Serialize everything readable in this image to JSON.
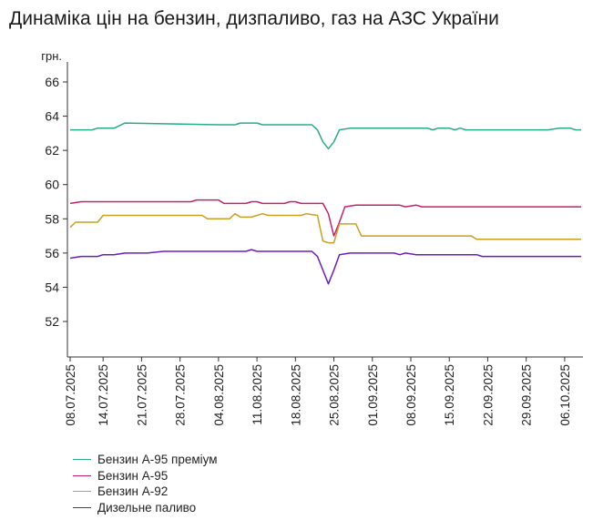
{
  "title": "Динаміка цін на бензин, дизпаливо, газ на АЗС України",
  "chart_data": {
    "type": "line",
    "ylabel": "грн.",
    "ylim": [
      50,
      66
    ],
    "yticks": [
      52,
      54,
      56,
      58,
      60,
      62,
      64,
      66
    ],
    "x_start": "2025-07-08",
    "x_end": "2025-10-09",
    "xticks": [
      "08.07.2025",
      "14.07.2025",
      "21.07.2025",
      "28.07.2025",
      "04.08.2025",
      "11.08.2025",
      "18.08.2025",
      "25.08.2025",
      "01.09.2025",
      "08.09.2025",
      "15.09.2025",
      "22.09.2025",
      "29.09.2025",
      "06.10.2025"
    ],
    "legend_position": "bottom-left",
    "grid": false,
    "series": [
      {
        "name": "Бензин А-95 преміум",
        "color": "#2aaa8a",
        "points": [
          [
            "2025-07-08",
            63.2
          ],
          [
            "2025-07-12",
            63.2
          ],
          [
            "2025-07-13",
            63.3
          ],
          [
            "2025-07-16",
            63.3
          ],
          [
            "2025-07-18",
            63.6
          ],
          [
            "2025-08-04",
            63.5
          ],
          [
            "2025-08-07",
            63.5
          ],
          [
            "2025-08-08",
            63.6
          ],
          [
            "2025-08-11",
            63.6
          ],
          [
            "2025-08-12",
            63.5
          ],
          [
            "2025-08-21",
            63.5
          ],
          [
            "2025-08-22",
            63.2
          ],
          [
            "2025-08-23",
            62.5
          ],
          [
            "2025-08-24",
            62.1
          ],
          [
            "2025-08-25",
            62.5
          ],
          [
            "2025-08-26",
            63.2
          ],
          [
            "2025-08-28",
            63.3
          ],
          [
            "2025-09-11",
            63.3
          ],
          [
            "2025-09-12",
            63.2
          ],
          [
            "2025-09-13",
            63.3
          ],
          [
            "2025-09-15",
            63.3
          ],
          [
            "2025-09-16",
            63.2
          ],
          [
            "2025-09-17",
            63.3
          ],
          [
            "2025-09-18",
            63.2
          ],
          [
            "2025-09-30",
            63.2
          ],
          [
            "2025-10-01",
            63.2
          ],
          [
            "2025-10-03",
            63.2
          ],
          [
            "2025-10-05",
            63.3
          ],
          [
            "2025-10-07",
            63.3
          ],
          [
            "2025-10-08",
            63.2
          ],
          [
            "2025-10-09",
            63.2
          ]
        ]
      },
      {
        "name": "Бензин А-95",
        "color": "#c0226e",
        "points": [
          [
            "2025-07-08",
            58.9
          ],
          [
            "2025-07-10",
            59.0
          ],
          [
            "2025-07-30",
            59.0
          ],
          [
            "2025-07-31",
            59.1
          ],
          [
            "2025-08-04",
            59.1
          ],
          [
            "2025-08-05",
            58.9
          ],
          [
            "2025-08-09",
            58.9
          ],
          [
            "2025-08-10",
            59.0
          ],
          [
            "2025-08-11",
            59.0
          ],
          [
            "2025-08-12",
            58.9
          ],
          [
            "2025-08-16",
            58.9
          ],
          [
            "2025-08-17",
            59.0
          ],
          [
            "2025-08-18",
            59.0
          ],
          [
            "2025-08-19",
            58.9
          ],
          [
            "2025-08-23",
            58.9
          ],
          [
            "2025-08-24",
            58.3
          ],
          [
            "2025-08-25",
            57.0
          ],
          [
            "2025-08-26",
            57.8
          ],
          [
            "2025-08-27",
            58.7
          ],
          [
            "2025-08-29",
            58.8
          ],
          [
            "2025-09-06",
            58.8
          ],
          [
            "2025-09-07",
            58.7
          ],
          [
            "2025-09-09",
            58.8
          ],
          [
            "2025-09-10",
            58.7
          ],
          [
            "2025-09-24",
            58.7
          ],
          [
            "2025-10-09",
            58.7
          ]
        ]
      },
      {
        "name": "Бензин А-92",
        "color": "#c9a020",
        "points": [
          [
            "2025-07-08",
            57.5
          ],
          [
            "2025-07-09",
            57.8
          ],
          [
            "2025-07-13",
            57.8
          ],
          [
            "2025-07-14",
            58.2
          ],
          [
            "2025-08-01",
            58.2
          ],
          [
            "2025-08-02",
            58.0
          ],
          [
            "2025-08-06",
            58.0
          ],
          [
            "2025-08-07",
            58.3
          ],
          [
            "2025-08-08",
            58.1
          ],
          [
            "2025-08-10",
            58.1
          ],
          [
            "2025-08-12",
            58.3
          ],
          [
            "2025-08-13",
            58.2
          ],
          [
            "2025-08-19",
            58.2
          ],
          [
            "2025-08-20",
            58.3
          ],
          [
            "2025-08-22",
            58.2
          ],
          [
            "2025-08-23",
            56.7
          ],
          [
            "2025-08-24",
            56.6
          ],
          [
            "2025-08-25",
            56.6
          ],
          [
            "2025-08-26",
            57.7
          ],
          [
            "2025-08-29",
            57.7
          ],
          [
            "2025-08-30",
            57.0
          ],
          [
            "2025-09-19",
            57.0
          ],
          [
            "2025-09-20",
            56.8
          ],
          [
            "2025-10-09",
            56.8
          ]
        ]
      },
      {
        "name": "Дизельне паливо",
        "color": "#6a1ec0",
        "points": [
          [
            "2025-07-08",
            55.7
          ],
          [
            "2025-07-10",
            55.8
          ],
          [
            "2025-07-13",
            55.8
          ],
          [
            "2025-07-14",
            55.9
          ],
          [
            "2025-07-16",
            55.9
          ],
          [
            "2025-07-18",
            56.0
          ],
          [
            "2025-07-22",
            56.0
          ],
          [
            "2025-07-25",
            56.1
          ],
          [
            "2025-08-09",
            56.1
          ],
          [
            "2025-08-10",
            56.2
          ],
          [
            "2025-08-11",
            56.1
          ],
          [
            "2025-08-21",
            56.1
          ],
          [
            "2025-08-22",
            55.8
          ],
          [
            "2025-08-23",
            55.0
          ],
          [
            "2025-08-24",
            54.2
          ],
          [
            "2025-08-25",
            55.0
          ],
          [
            "2025-08-26",
            55.9
          ],
          [
            "2025-08-28",
            56.0
          ],
          [
            "2025-09-05",
            56.0
          ],
          [
            "2025-09-06",
            55.9
          ],
          [
            "2025-09-07",
            56.0
          ],
          [
            "2025-09-09",
            55.9
          ],
          [
            "2025-09-20",
            55.9
          ],
          [
            "2025-09-21",
            55.8
          ],
          [
            "2025-10-09",
            55.8
          ]
        ]
      }
    ]
  }
}
